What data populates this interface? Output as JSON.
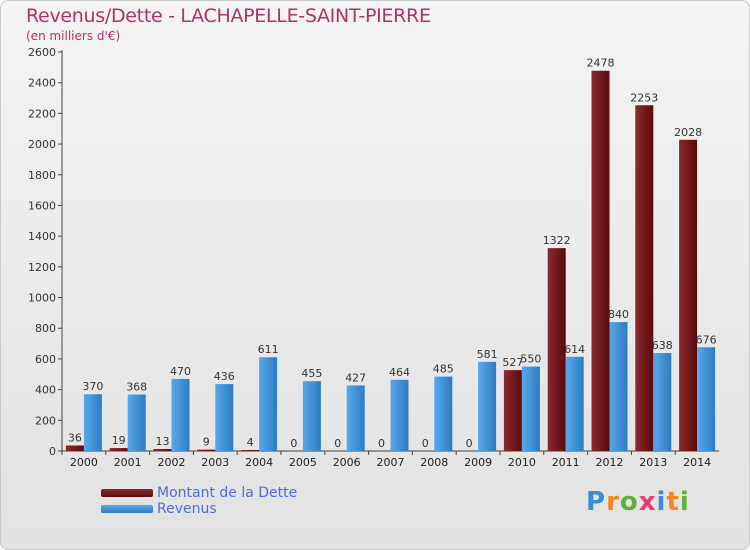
{
  "chart_data": {
    "type": "bar",
    "title": "Revenus/Dette - LACHAPELLE-SAINT-PIERRE",
    "subtitle": "(en milliers d'€)",
    "categories": [
      "2000",
      "2001",
      "2002",
      "2003",
      "2004",
      "2005",
      "2006",
      "2007",
      "2008",
      "2009",
      "2010",
      "2011",
      "2012",
      "2013",
      "2014"
    ],
    "series": [
      {
        "name": "Montant de la Dette",
        "color": "#6e1418",
        "values": [
          36,
          19,
          13,
          9,
          4,
          0,
          0,
          0,
          0,
          0,
          527,
          1322,
          2478,
          2253,
          2028
        ]
      },
      {
        "name": "Revenus",
        "color": "#3d8fd6",
        "values": [
          370,
          368,
          470,
          436,
          611,
          455,
          427,
          464,
          485,
          581,
          550,
          614,
          840,
          638,
          676
        ]
      }
    ],
    "ylim": [
      0,
      2600
    ],
    "yticks": [
      0,
      200,
      400,
      600,
      800,
      1000,
      1200,
      1400,
      1600,
      1800,
      2000,
      2200,
      2400,
      2600
    ],
    "grid": false,
    "legend_position": "bottom-left"
  },
  "logo": {
    "letters": [
      "P",
      "r",
      "o",
      "x",
      "i",
      "t",
      "i"
    ],
    "colors": [
      "#3b8dd4",
      "#f08a1c",
      "#5bb335",
      "#e63d7a",
      "#3b8dd4",
      "#f08a1c",
      "#5bb335"
    ]
  }
}
